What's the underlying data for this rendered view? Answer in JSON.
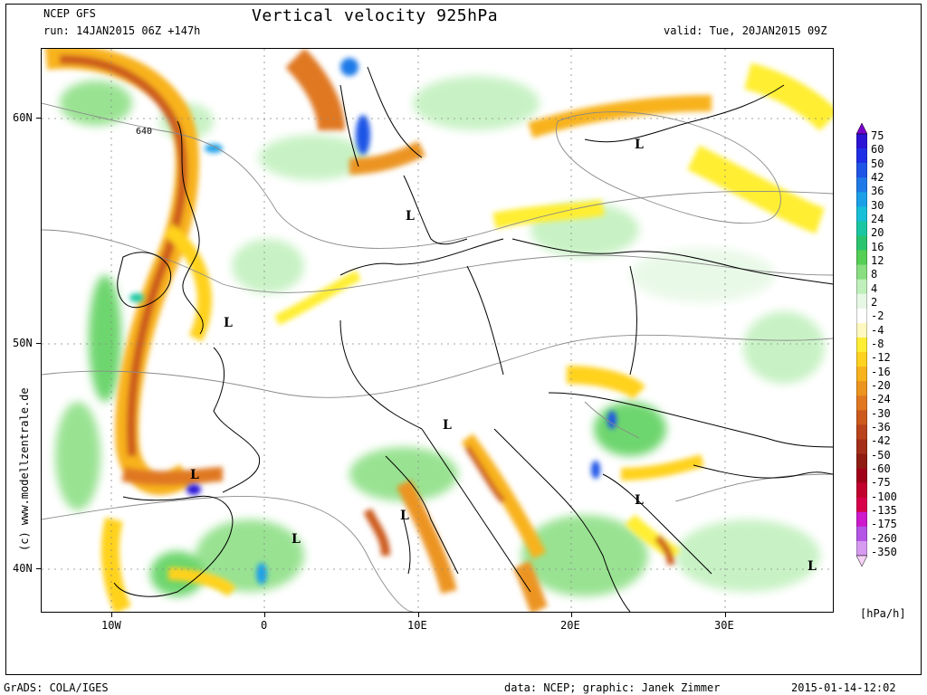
{
  "header": {
    "model": "NCEP GFS",
    "run": "run: 14JAN2015 06Z +147h",
    "title": "Vertical velocity 925hPa",
    "valid": "valid: Tue, 20JAN2015 09Z"
  },
  "axes": {
    "lat_labels": [
      "60N",
      "50N",
      "40N"
    ],
    "lon_labels": [
      "10W",
      "0",
      "10E",
      "20E",
      "30E"
    ]
  },
  "map": {
    "low_marker": "L",
    "contour_label": "640"
  },
  "colorbar": {
    "levels": [
      "75",
      "60",
      "50",
      "42",
      "36",
      "30",
      "24",
      "20",
      "16",
      "12",
      "8",
      "4",
      "2",
      "-2",
      "-4",
      "-8",
      "-12",
      "-16",
      "-20",
      "-24",
      "-30",
      "-36",
      "-42",
      "-50",
      "-60",
      "-75",
      "-100",
      "-135",
      "-175",
      "-260",
      "-350"
    ],
    "colors": [
      "#7a00cc",
      "#2b14d6",
      "#1e2ee6",
      "#1f55e6",
      "#1f7ae8",
      "#1ba0e8",
      "#18bfd8",
      "#1ac7a2",
      "#2ac46e",
      "#55cf55",
      "#88de80",
      "#bff0bb",
      "#e6f8e4",
      "#ffffff",
      "#fff8c0",
      "#ffee33",
      "#ffd21f",
      "#f8b21c",
      "#ec9420",
      "#e07822",
      "#cc5a1d",
      "#b9431c",
      "#a42e18",
      "#8f1c12",
      "#a00018",
      "#c2002e",
      "#d8004a",
      "#cc1acc",
      "#b455e6",
      "#d69af0",
      "#f6d2f6"
    ],
    "unit": "[hPa/h]"
  },
  "footer": {
    "left": "GrADS: COLA/IGES",
    "credit": "data: NCEP; graphic: Janek Zimmer",
    "timestamp": "2015-01-14-12:02"
  },
  "side_credit": "(c) www.modellzentrale.de"
}
